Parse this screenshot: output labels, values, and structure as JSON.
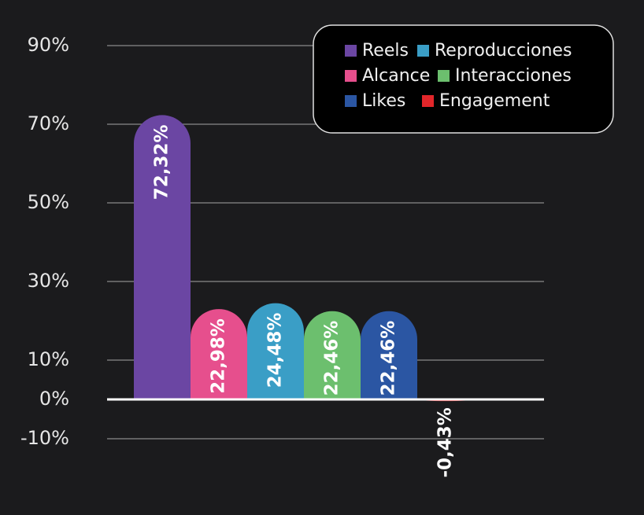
{
  "chart_data": {
    "type": "bar",
    "categories": [
      "Reels",
      "Alcance",
      "Reproducciones",
      "Interacciones",
      "Likes",
      "Engagement"
    ],
    "values": [
      72.32,
      22.98,
      24.48,
      22.46,
      22.46,
      -0.43
    ],
    "value_labels": [
      "72,32%",
      "22,98%",
      "24,48%",
      "22,46%",
      "22,46%",
      "-0,43%"
    ],
    "colors": [
      "#6b46a3",
      "#e64f8d",
      "#3a9ec6",
      "#6cbf6e",
      "#2b56a3",
      "#e2262a"
    ],
    "ylim": [
      -10,
      90
    ],
    "yticks": [
      {
        "value": -10,
        "label": "-10%"
      },
      {
        "value": 0,
        "label": "0%"
      },
      {
        "value": 10,
        "label": "10%"
      },
      {
        "value": 30,
        "label": "30%"
      },
      {
        "value": 50,
        "label": "50%"
      },
      {
        "value": 70,
        "label": "70%"
      },
      {
        "value": 90,
        "label": "90%"
      }
    ],
    "grid": true,
    "legend": "upper right"
  }
}
